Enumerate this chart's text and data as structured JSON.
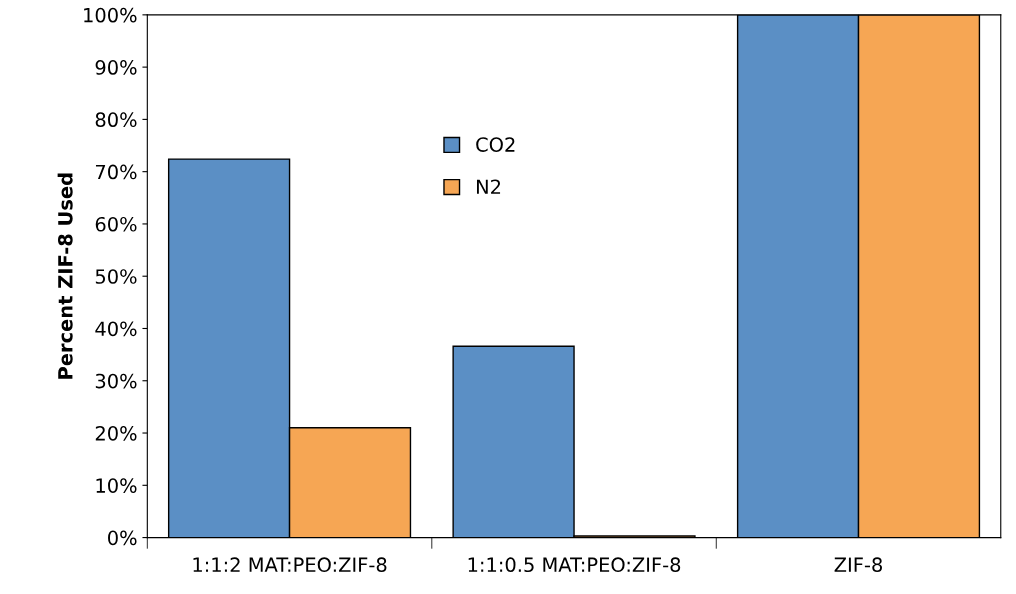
{
  "chart_data": {
    "type": "bar",
    "ylabel": "Percent ZIF-8 Used",
    "categories": [
      "1:1:2 MAT:PEO:ZIF-8",
      "1:1:0.5 MAT:PEO:ZIF-8",
      "ZIF-8"
    ],
    "series": [
      {
        "name": "CO2",
        "color": "#5b8fc5",
        "values": [
          72.4,
          36.6,
          100
        ]
      },
      {
        "name": "N2",
        "color": "#f6a654",
        "values": [
          21.0,
          0.3,
          100
        ]
      }
    ],
    "ylim": [
      0,
      100
    ],
    "yticks": [
      {
        "value": 0,
        "label": "0%"
      },
      {
        "value": 10,
        "label": "10%"
      },
      {
        "value": 20,
        "label": "20%"
      },
      {
        "value": 30,
        "label": "30%"
      },
      {
        "value": 40,
        "label": "40%"
      },
      {
        "value": 50,
        "label": "50%"
      },
      {
        "value": 60,
        "label": "60%"
      },
      {
        "value": 70,
        "label": "70%"
      },
      {
        "value": 80,
        "label": "80%"
      },
      {
        "value": 90,
        "label": "90%"
      },
      {
        "value": 100,
        "label": "100%"
      }
    ],
    "grid": false,
    "legend": "top"
  }
}
